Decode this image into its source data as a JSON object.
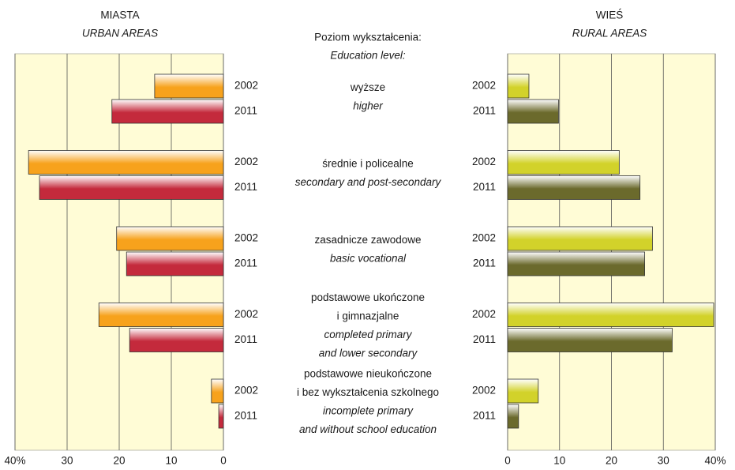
{
  "chart_data": [
    {
      "type": "bar",
      "orientation": "horizontal",
      "title": "MIASTA",
      "subtitle": "URBAN AREAS",
      "xlim": [
        40,
        0
      ],
      "xticks": [
        {
          "value": 40,
          "label": "40%"
        },
        30,
        20,
        10,
        0
      ],
      "grid": true,
      "series": [
        {
          "name": "2002",
          "color": "#f7a21c",
          "values": [
            13.2,
            37.4,
            20.5,
            23.9,
            2.3
          ]
        },
        {
          "name": "2011",
          "color": "#c42a3c",
          "values": [
            21.4,
            35.3,
            18.6,
            18.0,
            0.9
          ]
        }
      ]
    },
    {
      "type": "bar",
      "orientation": "horizontal",
      "title": "WIEŚ",
      "subtitle": "RURAL AREAS",
      "xlim": [
        0,
        40
      ],
      "xticks": [
        0,
        10,
        20,
        30,
        {
          "value": 40,
          "label": "40%"
        }
      ],
      "grid": true,
      "series": [
        {
          "name": "2002",
          "color": "#d2d22a",
          "values": [
            4.1,
            21.5,
            27.9,
            39.7,
            5.9
          ]
        },
        {
          "name": "2011",
          "color": "#6b6a2c",
          "values": [
            9.8,
            25.5,
            26.4,
            31.7,
            2.1
          ]
        }
      ]
    }
  ],
  "category_axis": {
    "title": "Poziom wykształcenia:",
    "subtitle": "Education level:",
    "categories": [
      {
        "pl": [
          "wyższe"
        ],
        "en": [
          "higher"
        ]
      },
      {
        "pl": [
          "średnie i policealne"
        ],
        "en": [
          "secondary and post-secondary"
        ]
      },
      {
        "pl": [
          "zasadnicze zawodowe"
        ],
        "en": [
          "basic vocational"
        ]
      },
      {
        "pl": [
          "podstawowe ukończone",
          "i gimnazjalne"
        ],
        "en": [
          "completed primary",
          "and lower secondary"
        ]
      },
      {
        "pl": [
          "podstawowe nieukończone",
          "i bez wykształcenia szkolnego"
        ],
        "en": [
          "incomplete primary",
          "and without school education"
        ]
      }
    ]
  }
}
